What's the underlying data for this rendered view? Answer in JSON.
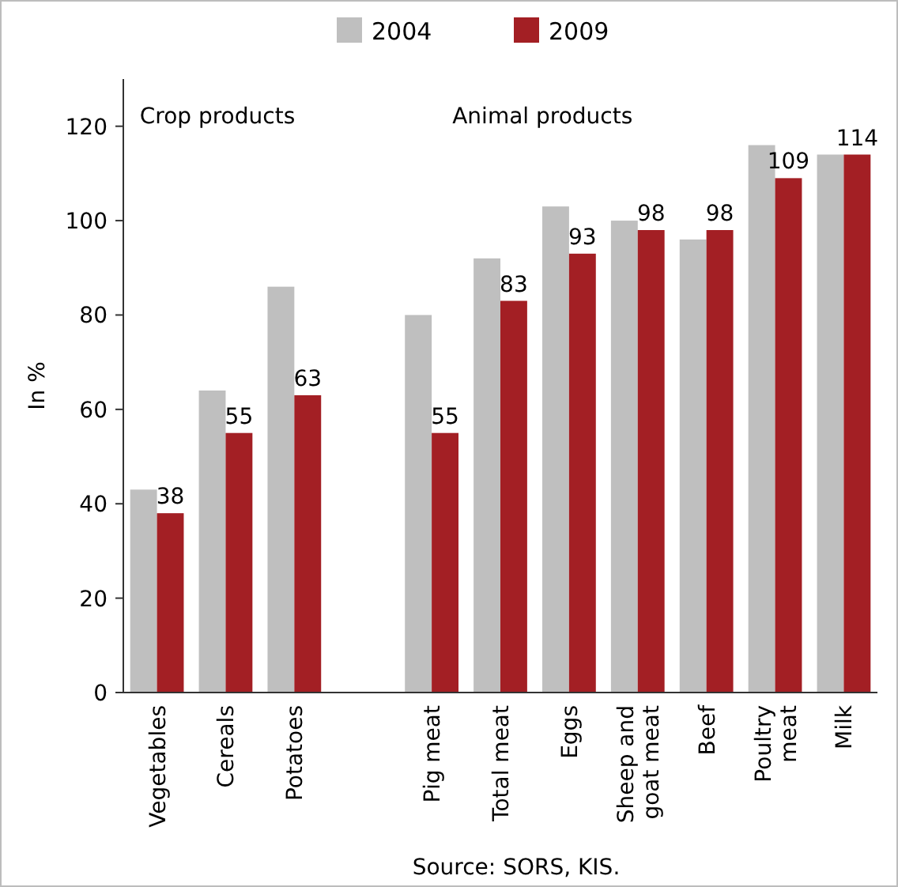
{
  "chart_data": {
    "type": "bar",
    "ylabel": "In %",
    "categories": [
      "Vegetables",
      "Cereals",
      "Potatoes",
      null,
      "Pig meat",
      "Total meat",
      "Eggs",
      "Sheep and goat meat",
      "Beef",
      "Poultry meat",
      "Milk"
    ],
    "series": [
      {
        "name": "2004",
        "color": "#bfbfbf",
        "values": [
          43,
          64,
          86,
          null,
          80,
          92,
          103,
          100,
          96,
          116,
          114
        ]
      },
      {
        "name": "2009",
        "color": "#a31f24",
        "values": [
          38,
          55,
          63,
          null,
          55,
          83,
          93,
          98,
          98,
          109,
          114
        ],
        "value_labels": [
          "38",
          "55",
          "63",
          null,
          "55",
          "83",
          "93",
          "98",
          "98",
          "109",
          "114"
        ]
      }
    ],
    "ylim": [
      0,
      130
    ],
    "yticks": [
      0,
      20,
      40,
      60,
      80,
      100,
      120
    ],
    "legend": "top",
    "annotations": [
      "Crop products",
      "Animal products",
      "Source: SORS, KIS."
    ]
  }
}
